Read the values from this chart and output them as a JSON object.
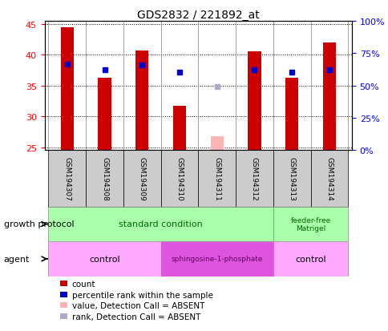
{
  "title": "GDS2832 / 221892_at",
  "samples": [
    "GSM194307",
    "GSM194308",
    "GSM194309",
    "GSM194310",
    "GSM194311",
    "GSM194312",
    "GSM194313",
    "GSM194314"
  ],
  "count_values": [
    44.5,
    36.2,
    40.7,
    31.7,
    null,
    40.5,
    36.3,
    42.0
  ],
  "count_absent_values": [
    null,
    null,
    null,
    null,
    26.8,
    null,
    null,
    null
  ],
  "percentile_values": [
    38.5,
    37.6,
    38.3,
    37.2,
    null,
    37.6,
    37.2,
    37.6
  ],
  "percentile_absent_values": [
    null,
    null,
    null,
    null,
    34.8,
    null,
    null,
    null
  ],
  "ylim_left": [
    24.5,
    45.5
  ],
  "ylim_right": [
    0,
    100
  ],
  "yticks_left": [
    25,
    30,
    35,
    40,
    45
  ],
  "yticks_right": [
    0,
    25,
    50,
    75,
    100
  ],
  "ytick_labels_right": [
    "0%",
    "25%",
    "50%",
    "75%",
    "100%"
  ],
  "bar_color": "#cc0000",
  "bar_absent_color": "#ffb3b3",
  "percentile_color": "#0000cc",
  "percentile_absent_color": "#aaaacc",
  "bar_width": 0.35,
  "percentile_marker_size": 5,
  "growth_protocol_label": "growth protocol",
  "agent_label": "agent",
  "sample_bg_color": "#cccccc",
  "growth_color": "#aaffaa",
  "growth_text_color": "#006600",
  "agent_control_color": "#ffaaff",
  "agent_sphingo_color": "#dd55dd",
  "agent_text_color": "#000000",
  "agent_sphingo_text_color": "#660066",
  "legend_items": [
    {
      "label": "count",
      "color": "#cc0000"
    },
    {
      "label": "percentile rank within the sample",
      "color": "#0000cc"
    },
    {
      "label": "value, Detection Call = ABSENT",
      "color": "#ffb3b3"
    },
    {
      "label": "rank, Detection Call = ABSENT",
      "color": "#aaaacc"
    }
  ]
}
